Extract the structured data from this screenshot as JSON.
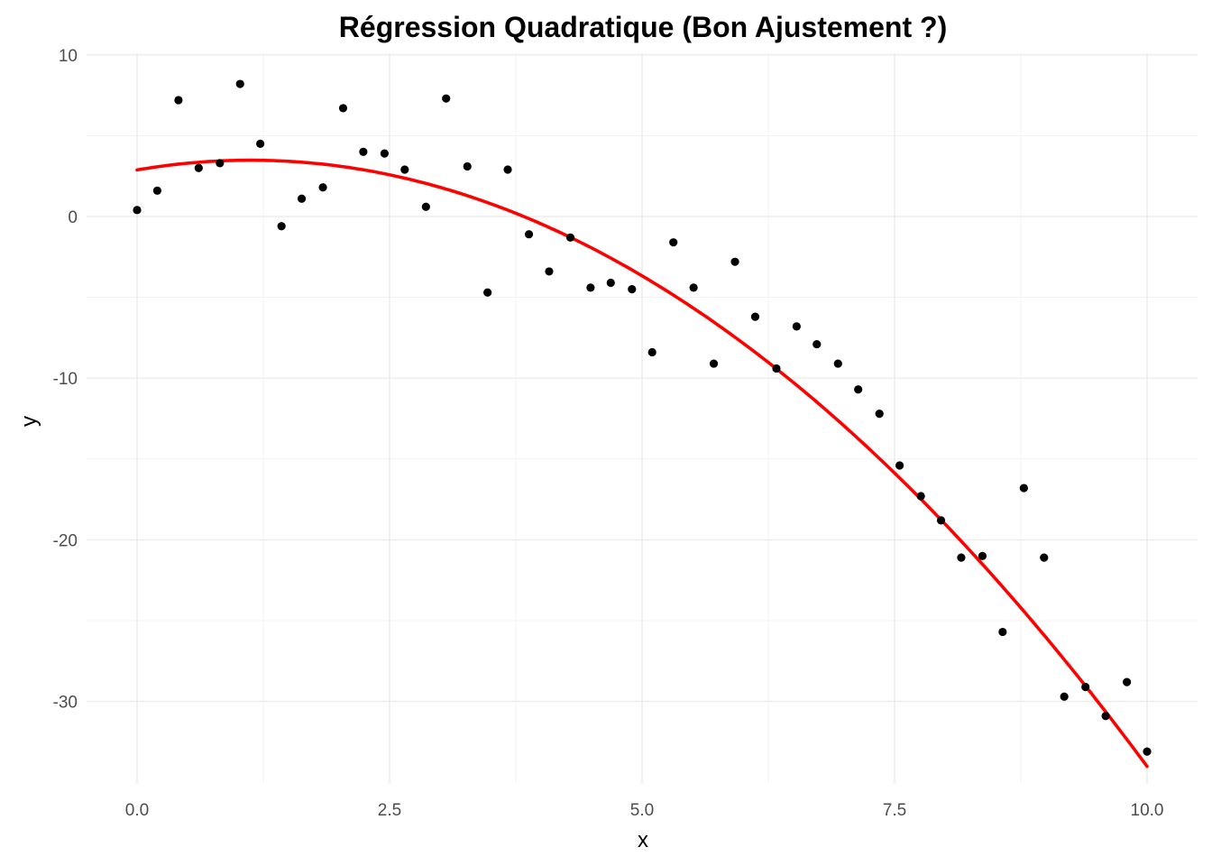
{
  "chart_data": {
    "type": "scatter",
    "title": "Régression Quadratique (Bon Ajustement ?)",
    "xlabel": "x",
    "ylabel": "y",
    "xlim": [
      -0.5,
      10.5
    ],
    "ylim": [
      -35.1,
      10.1
    ],
    "grid": true,
    "x_ticks": [
      0.0,
      2.5,
      5.0,
      7.5,
      10.0
    ],
    "x_tick_labels": [
      "0.0",
      "2.5",
      "5.0",
      "7.5",
      "10.0"
    ],
    "y_ticks": [
      10,
      0,
      -10,
      -20,
      -30
    ],
    "y_tick_labels": [
      "10",
      "0",
      "-10",
      "-20",
      "-30"
    ],
    "series": [
      {
        "kind": "points",
        "color": "#000000",
        "x": [
          0.0,
          0.2,
          0.41,
          0.61,
          0.82,
          1.02,
          1.22,
          1.43,
          1.63,
          1.84,
          2.04,
          2.24,
          2.45,
          2.65,
          2.86,
          3.06,
          3.27,
          3.47,
          3.67,
          3.88,
          4.08,
          4.29,
          4.49,
          4.69,
          4.9,
          5.1,
          5.31,
          5.51,
          5.71,
          5.92,
          6.12,
          6.33,
          6.53,
          6.73,
          6.94,
          7.14,
          7.35,
          7.55,
          7.76,
          7.96,
          8.16,
          8.37,
          8.57,
          8.78,
          8.98,
          9.18,
          9.39,
          9.59,
          9.8,
          10.0
        ],
        "y": [
          0.4,
          1.6,
          7.2,
          3.0,
          3.3,
          8.2,
          4.5,
          -0.6,
          1.1,
          1.8,
          6.7,
          4.0,
          3.9,
          2.9,
          0.6,
          7.3,
          3.1,
          -4.7,
          2.9,
          -1.1,
          -3.4,
          -1.3,
          -4.4,
          -4.1,
          -4.5,
          -8.4,
          -1.6,
          -4.4,
          -9.1,
          -2.8,
          -6.2,
          -9.4,
          -6.8,
          -7.9,
          -9.1,
          -10.7,
          -12.2,
          -15.4,
          -17.3,
          -18.8,
          -21.1,
          -21.0,
          -25.7,
          -16.8,
          -21.1,
          -29.7,
          -29.1,
          -30.9,
          -28.8,
          -33.1
        ]
      },
      {
        "kind": "fit-line",
        "color": "#ff0000",
        "fit": "quadratic",
        "coefficients": {
          "a": -0.476,
          "b": 1.07,
          "c": 2.88
        }
      }
    ]
  }
}
